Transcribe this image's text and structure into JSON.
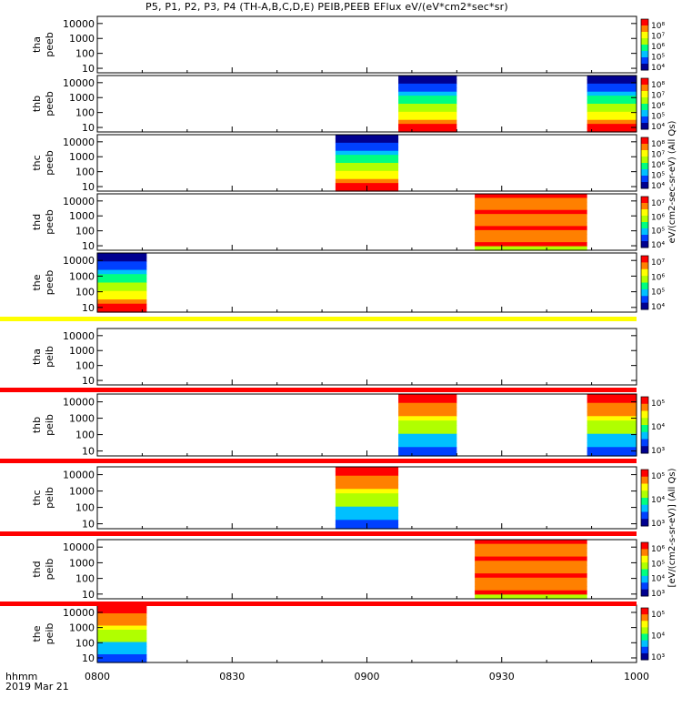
{
  "title": "P5, P1, P2, P3, P4 (TH-A,B,C,D,E) PEIB,PEEB EFlux eV/(eV*cm2*sec*sr)",
  "footer": {
    "label": "hhmm",
    "date": "2019 Mar 21"
  },
  "chart_data": {
    "type": "heatmap",
    "x_ticks": [
      "0800",
      "0830",
      "0900",
      "0930",
      "1000"
    ],
    "x_range_minutes": [
      0,
      120
    ],
    "y_ticks": [
      "10",
      "100",
      "1000",
      "10000"
    ],
    "y_scale": "log",
    "y_range": [
      5,
      30000
    ],
    "panels": [
      {
        "probe": "tha",
        "instrument": "peeb",
        "intervals": [],
        "scale": [
          "10⁸",
          "10⁷",
          "10⁶",
          "10⁵",
          "10⁴"
        ],
        "band_top": null
      },
      {
        "probe": "thb",
        "instrument": "peeb",
        "intervals": [
          [
            67,
            80
          ],
          [
            109,
            120
          ]
        ],
        "scale": [
          "10⁸",
          "10⁷",
          "10⁶",
          "10⁵",
          "10⁴"
        ],
        "band_top": null
      },
      {
        "probe": "thc",
        "instrument": "peeb",
        "intervals": [
          [
            53,
            67
          ]
        ],
        "scale": [
          "10⁸",
          "10⁷",
          "10⁶",
          "10⁵",
          "10⁴"
        ],
        "band_top": null
      },
      {
        "probe": "thd",
        "instrument": "peeb",
        "intervals": [
          [
            84,
            109
          ]
        ],
        "scale": [
          "10⁷",
          "10⁶",
          "10⁵",
          "10⁴"
        ],
        "band_top": null
      },
      {
        "probe": "the",
        "instrument": "peeb",
        "intervals": [
          [
            0,
            11
          ]
        ],
        "scale": [
          "10⁷",
          "10⁶",
          "10⁵",
          "10⁴"
        ],
        "band_top": "yellow"
      },
      {
        "probe": "tha",
        "instrument": "peib",
        "intervals": [],
        "scale": [],
        "band_top": "red"
      },
      {
        "probe": "thb",
        "instrument": "peib",
        "intervals": [
          [
            67,
            80
          ],
          [
            109,
            120
          ]
        ],
        "scale": [
          "10⁵",
          "10⁴",
          "10³"
        ],
        "band_top": "red"
      },
      {
        "probe": "thc",
        "instrument": "peib",
        "intervals": [
          [
            53,
            67
          ]
        ],
        "scale": [
          "10⁵",
          "10⁴",
          "10³"
        ],
        "band_top": "red"
      },
      {
        "probe": "thd",
        "instrument": "peib",
        "intervals": [
          [
            84,
            109
          ]
        ],
        "scale": [
          "10⁶",
          "10⁵",
          "10⁴",
          "10³"
        ],
        "band_top": "red"
      },
      {
        "probe": "the",
        "instrument": "peib",
        "intervals": [
          [
            0,
            11
          ]
        ],
        "scale": [
          "10⁵",
          "10⁴",
          "10³"
        ],
        "band_top": null
      }
    ],
    "colorbar_label_electron": "eV/(cm2-sec-sr-eV) (All Qs)",
    "colorbar_label_ion": "[eV/(cm2-s-sr-eV)] (All Qs)"
  },
  "colors": {
    "colormap": [
      "#000090",
      "#0040ff",
      "#00c0ff",
      "#00ff80",
      "#b0ff00",
      "#ffff00",
      "#ff8000",
      "#ff0000"
    ],
    "band_red": "#ff0000",
    "band_yellow": "#ffff00"
  }
}
